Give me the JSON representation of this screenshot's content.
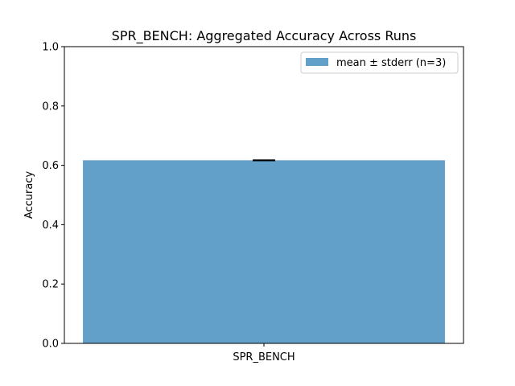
{
  "chart_data": {
    "type": "bar",
    "title": "SPR_BENCH: Aggregated Accuracy Across Runs",
    "xlabel": "",
    "ylabel": "Accuracy",
    "categories": [
      "SPR_BENCH"
    ],
    "series": [
      {
        "name": "mean ± stderr (n=3)",
        "values": [
          0.617
        ],
        "errors": [
          0.0
        ]
      }
    ],
    "ylim": [
      0,
      1.0
    ],
    "yticks": [
      "0.0",
      "0.2",
      "0.4",
      "0.6",
      "0.8",
      "1.0"
    ],
    "grid": false,
    "legend_position": "top-right",
    "colors": {
      "bar": "#62a0ca",
      "error_bar": "#000000"
    }
  }
}
